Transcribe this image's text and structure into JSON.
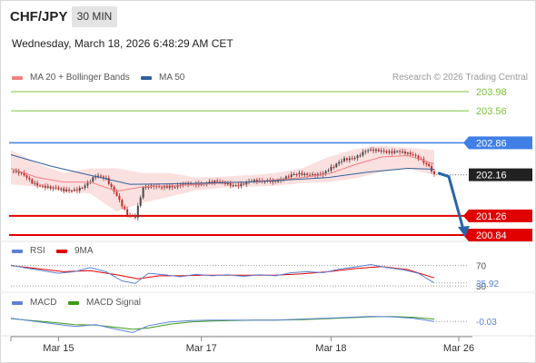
{
  "header": {
    "symbol": "CHF/JPY",
    "timeframe": "30 MIN",
    "datetime": "Wednesday, March 18, 2026 6:48:29 AM CET"
  },
  "credit": "Research © 2026 Trading Central",
  "colors": {
    "resistance": "#7dc13b",
    "pivot": "#3f7fe6",
    "support": "#e00000",
    "ma20": "#f08080",
    "ma50": "#2f5f9c",
    "bollinger_fill": "#fbe0e0",
    "arrow": "#2a64a8",
    "last_price": "#222222",
    "rsi": "#5b82d6",
    "rsi_ma": "#e00000",
    "macd": "#5b82d6",
    "macd_signal": "#3a9a1a"
  },
  "chart_data": [
    {
      "type": "candlestick",
      "name": "price",
      "legend": [
        {
          "label": "MA 20 + Bollinger Bands",
          "color": "#f08080"
        },
        {
          "label": "MA 50",
          "color": "#2f5f9c"
        }
      ],
      "ylim": [
        200.78,
        204.1
      ],
      "levels": [
        {
          "value": 203.98,
          "label": "203.98",
          "kind": "resistance"
        },
        {
          "value": 203.56,
          "label": "203.56",
          "kind": "resistance"
        },
        {
          "value": 202.86,
          "label": "202.86",
          "kind": "pivot"
        },
        {
          "value": 202.16,
          "label": "202.16",
          "kind": "last"
        },
        {
          "value": 201.26,
          "label": "201.26",
          "kind": "support"
        },
        {
          "value": 200.84,
          "label": "200.84",
          "kind": "support"
        }
      ],
      "last_price": 202.16,
      "forecast_path": [
        202.16,
        200.84
      ],
      "close_path": [
        [
          0,
          202.24
        ],
        [
          4,
          202.15
        ],
        [
          8,
          202.0
        ],
        [
          12,
          201.95
        ],
        [
          16,
          201.85
        ],
        [
          20,
          201.78
        ],
        [
          24,
          201.85
        ],
        [
          28,
          201.95
        ],
        [
          32,
          202.1
        ],
        [
          36,
          202.05
        ],
        [
          40,
          201.75
        ],
        [
          44,
          201.3
        ],
        [
          47,
          201.2
        ],
        [
          50,
          201.85
        ],
        [
          54,
          201.95
        ],
        [
          58,
          201.92
        ],
        [
          62,
          201.85
        ],
        [
          66,
          201.95
        ],
        [
          70,
          202.0
        ],
        [
          74,
          201.98
        ],
        [
          78,
          201.97
        ],
        [
          82,
          201.96
        ],
        [
          86,
          201.97
        ],
        [
          90,
          202.0
        ],
        [
          94,
          201.98
        ],
        [
          98,
          202.05
        ],
        [
          102,
          202.08
        ],
        [
          106,
          202.12
        ],
        [
          110,
          202.15
        ],
        [
          114,
          202.2
        ],
        [
          118,
          202.2
        ],
        [
          122,
          202.3
        ],
        [
          126,
          202.5
        ],
        [
          130,
          202.58
        ],
        [
          134,
          202.68
        ],
        [
          138,
          202.65
        ],
        [
          142,
          202.68
        ],
        [
          146,
          202.72
        ],
        [
          150,
          202.6
        ],
        [
          154,
          202.5
        ],
        [
          158,
          202.38
        ],
        [
          160,
          202.2
        ]
      ],
      "ma20_path": [
        [
          0,
          202.3
        ],
        [
          10,
          202.1
        ],
        [
          20,
          202.0
        ],
        [
          30,
          202.0
        ],
        [
          40,
          201.8
        ],
        [
          50,
          201.9
        ],
        [
          60,
          201.92
        ],
        [
          70,
          201.95
        ],
        [
          80,
          201.98
        ],
        [
          90,
          202.0
        ],
        [
          100,
          202.05
        ],
        [
          110,
          202.1
        ],
        [
          120,
          202.18
        ],
        [
          130,
          202.38
        ],
        [
          140,
          202.55
        ],
        [
          150,
          202.58
        ],
        [
          160,
          202.4
        ]
      ],
      "ma50_path": [
        [
          0,
          202.6
        ],
        [
          15,
          202.35
        ],
        [
          30,
          202.15
        ],
        [
          45,
          201.95
        ],
        [
          60,
          201.96
        ],
        [
          75,
          201.98
        ],
        [
          90,
          202.0
        ],
        [
          105,
          202.05
        ],
        [
          120,
          202.1
        ],
        [
          135,
          202.22
        ],
        [
          150,
          202.3
        ],
        [
          160,
          202.28
        ]
      ],
      "bollinger_upper": [
        [
          0,
          202.7
        ],
        [
          10,
          202.4
        ],
        [
          20,
          202.2
        ],
        [
          30,
          202.3
        ],
        [
          40,
          202.3
        ],
        [
          50,
          202.2
        ],
        [
          60,
          202.2
        ],
        [
          70,
          202.1
        ],
        [
          80,
          202.12
        ],
        [
          90,
          202.15
        ],
        [
          100,
          202.2
        ],
        [
          110,
          202.3
        ],
        [
          120,
          202.55
        ],
        [
          130,
          202.72
        ],
        [
          140,
          202.8
        ],
        [
          150,
          202.75
        ],
        [
          160,
          202.7
        ]
      ],
      "bollinger_lower": [
        [
          0,
          201.95
        ],
        [
          10,
          201.9
        ],
        [
          20,
          201.8
        ],
        [
          30,
          201.75
        ],
        [
          40,
          201.35
        ],
        [
          50,
          201.55
        ],
        [
          60,
          201.68
        ],
        [
          70,
          201.82
        ],
        [
          80,
          201.88
        ],
        [
          90,
          201.9
        ],
        [
          100,
          201.92
        ],
        [
          110,
          201.98
        ],
        [
          120,
          202.0
        ],
        [
          130,
          202.08
        ],
        [
          140,
          202.22
        ],
        [
          150,
          202.3
        ],
        [
          160,
          202.15
        ]
      ]
    },
    {
      "type": "line",
      "name": "RSI",
      "legend": [
        {
          "label": "RSI",
          "color": "#5b82d6"
        },
        {
          "label": "9MA",
          "color": "#e00000"
        }
      ],
      "ylim": [
        25,
        80
      ],
      "levels": [
        {
          "value": 70,
          "label": "70"
        },
        {
          "value": 30,
          "label": "30"
        }
      ],
      "last_value_label": "35.92",
      "series": [
        {
          "name": "RSI",
          "points": [
            [
              0,
              71
            ],
            [
              6,
              65
            ],
            [
              12,
              60
            ],
            [
              18,
              55
            ],
            [
              24,
              58
            ],
            [
              30,
              66
            ],
            [
              36,
              58
            ],
            [
              42,
              40
            ],
            [
              47,
              35
            ],
            [
              52,
              55
            ],
            [
              58,
              52
            ],
            [
              64,
              48
            ],
            [
              70,
              53
            ],
            [
              76,
              50
            ],
            [
              82,
              52
            ],
            [
              88,
              49
            ],
            [
              94,
              52
            ],
            [
              100,
              50
            ],
            [
              106,
              56
            ],
            [
              112,
              58
            ],
            [
              118,
              56
            ],
            [
              124,
              63
            ],
            [
              130,
              67
            ],
            [
              136,
              72
            ],
            [
              142,
              66
            ],
            [
              148,
              62
            ],
            [
              154,
              55
            ],
            [
              160,
              36
            ]
          ]
        },
        {
          "name": "9MA",
          "points": [
            [
              0,
              70
            ],
            [
              10,
              64
            ],
            [
              20,
              58
            ],
            [
              30,
              60
            ],
            [
              40,
              52
            ],
            [
              48,
              44
            ],
            [
              56,
              50
            ],
            [
              64,
              50
            ],
            [
              72,
              51
            ],
            [
              80,
              51
            ],
            [
              90,
              51
            ],
            [
              100,
              51
            ],
            [
              110,
              54
            ],
            [
              120,
              58
            ],
            [
              130,
              64
            ],
            [
              140,
              68
            ],
            [
              150,
              62
            ],
            [
              160,
              46
            ]
          ]
        }
      ]
    },
    {
      "type": "line",
      "name": "MACD",
      "legend": [
        {
          "label": "MACD",
          "color": "#5b82d6"
        },
        {
          "label": "MACD Signal",
          "color": "#3a9a1a"
        }
      ],
      "ylim": [
        -0.3,
        0.15
      ],
      "last_value_label": "-0.03",
      "series": [
        {
          "name": "MACD",
          "points": [
            [
              0,
              0.04
            ],
            [
              8,
              -0.02
            ],
            [
              16,
              -0.08
            ],
            [
              24,
              -0.14
            ],
            [
              32,
              -0.1
            ],
            [
              40,
              -0.2
            ],
            [
              46,
              -0.27
            ],
            [
              52,
              -0.12
            ],
            [
              60,
              -0.04
            ],
            [
              68,
              -0.01
            ],
            [
              76,
              0.0
            ],
            [
              84,
              0.0
            ],
            [
              92,
              0.0
            ],
            [
              100,
              0.0
            ],
            [
              110,
              0.02
            ],
            [
              120,
              0.04
            ],
            [
              128,
              0.06
            ],
            [
              136,
              0.08
            ],
            [
              144,
              0.07
            ],
            [
              152,
              0.04
            ],
            [
              160,
              -0.03
            ]
          ]
        },
        {
          "name": "MACD Signal",
          "points": [
            [
              0,
              0.03
            ],
            [
              8,
              -0.01
            ],
            [
              16,
              -0.05
            ],
            [
              24,
              -0.1
            ],
            [
              32,
              -0.11
            ],
            [
              40,
              -0.16
            ],
            [
              46,
              -0.2
            ],
            [
              52,
              -0.17
            ],
            [
              60,
              -0.09
            ],
            [
              68,
              -0.04
            ],
            [
              76,
              -0.02
            ],
            [
              84,
              -0.01
            ],
            [
              92,
              0.0
            ],
            [
              100,
              0.0
            ],
            [
              110,
              0.01
            ],
            [
              120,
              0.03
            ],
            [
              128,
              0.05
            ],
            [
              136,
              0.07
            ],
            [
              144,
              0.075
            ],
            [
              152,
              0.06
            ],
            [
              160,
              0.02
            ]
          ]
        }
      ]
    }
  ],
  "x_axis": {
    "ticks": [
      {
        "label": "Mar 15",
        "bar": 18
      },
      {
        "label": "Mar 17",
        "bar": 72
      },
      {
        "label": "Mar 18",
        "bar": 121
      },
      {
        "label": "Mar 26",
        "bar": 140
      }
    ]
  }
}
